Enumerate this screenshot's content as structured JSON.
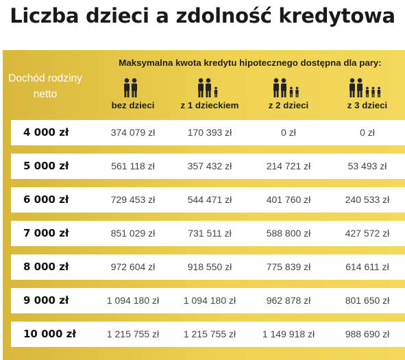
{
  "chart_data": {
    "type": "table",
    "title": "Liczba dzieci a zdolność kredytowa",
    "row_header": "Dochód rodziny netto",
    "group_header": "Maksymalna kwota kredytu hipotecznego dostępna dla pary:",
    "columns": [
      "bez dzieci",
      "z 1 dzieckiem",
      "z 2 dzieci",
      "z 3 dzieci"
    ],
    "children_counts": [
      0,
      1,
      2,
      3
    ],
    "rows": [
      {
        "income": "4 000 zł",
        "values": [
          "374 079 zł",
          "170 393 zł",
          "0 zł",
          "0 zł"
        ]
      },
      {
        "income": "5 000 zł",
        "values": [
          "561 118 zł",
          "357 432 zł",
          "214 721 zł",
          "53 493 zł"
        ]
      },
      {
        "income": "6 000 zł",
        "values": [
          "729 453 zł",
          "544 471 zł",
          "401 760 zł",
          "240 533 zł"
        ]
      },
      {
        "income": "7 000 zł",
        "values": [
          "851 029 zł",
          "731 511 zł",
          "588 800 zł",
          "427 572 zł"
        ]
      },
      {
        "income": "8 000 zł",
        "values": [
          "972 604 zł",
          "918 550 zł",
          "775 839 zł",
          "614 611 zł"
        ]
      },
      {
        "income": "9 000 zł",
        "values": [
          "1 094 180 zł",
          "1 094 180 zł",
          "962 878 zł",
          "801 650 zł"
        ]
      },
      {
        "income": "10 000 zł",
        "values": [
          "1 215 755 zł",
          "1 215 755 zł",
          "1 149 918 zł",
          "988 690 zł"
        ]
      }
    ]
  },
  "colors": {
    "panel_left": "#d8b73a",
    "panel_right": "#f4d85a",
    "text_dark": "#1f1f1f",
    "row_bg": "#ffffff"
  },
  "icons": {
    "adult": "person-adult-icon",
    "child": "person-child-icon"
  }
}
